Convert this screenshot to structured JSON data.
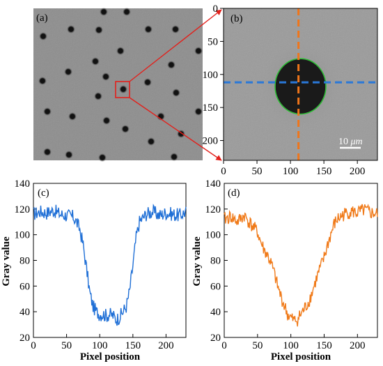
{
  "colors": {
    "blue": "#1f6fd6",
    "orange": "#f07a19",
    "dashed_blue": "#2a78d8",
    "dashed_orange": "#f0751a",
    "highlight_red": "#e3201b",
    "contour_green": "#22c22a"
  },
  "chart_data": [
    {
      "panel": "(a)",
      "type": "image",
      "description_tag": "(a)"
    },
    {
      "panel": "(b)",
      "type": "image",
      "xlim": [
        0,
        230
      ],
      "ylim": [
        0,
        230
      ],
      "y_inverted": true,
      "xticks": [
        0,
        50,
        100,
        150,
        200
      ],
      "yticks": [
        0,
        50,
        100,
        150,
        200
      ],
      "dashed_line_vertical_x": 112,
      "dashed_line_horizontal_y": 112,
      "circle_center": [
        115,
        118
      ],
      "circle_radius_x": 38,
      "circle_radius_y": 42,
      "scale_bar_label": "10 μm",
      "scale_bar_parts": {
        "value": "10 ",
        "unit": "μm"
      }
    },
    {
      "panel": "(c)",
      "type": "line",
      "color": "#1f6fd6",
      "xlabel": "Pixel position",
      "ylabel": "Gray value",
      "xlim": [
        0,
        230
      ],
      "ylim": [
        20,
        140
      ],
      "xticks": [
        0,
        50,
        100,
        150,
        200
      ],
      "yticks": [
        20,
        40,
        60,
        80,
        100,
        120,
        140
      ],
      "series": [
        {
          "x": [
            0,
            10,
            20,
            30,
            40,
            50,
            60,
            65,
            70,
            75,
            80,
            85,
            90,
            95,
            100,
            105,
            110,
            115,
            120,
            125,
            130,
            135,
            140,
            145,
            150,
            155,
            160,
            170,
            180,
            190,
            200,
            210,
            220,
            230
          ],
          "y": [
            116,
            118,
            117,
            119,
            116,
            115,
            114,
            110,
            104,
            92,
            74,
            55,
            44,
            40,
            38,
            38,
            37,
            38,
            37,
            34,
            36,
            40,
            44,
            56,
            76,
            98,
            110,
            116,
            118,
            115,
            117,
            116,
            115,
            118
          ]
        }
      ]
    },
    {
      "panel": "(d)",
      "type": "line",
      "color": "#f07a19",
      "xlabel": "Pixel position",
      "ylabel": "Gray value",
      "xlim": [
        0,
        230
      ],
      "ylim": [
        20,
        140
      ],
      "xticks": [
        0,
        50,
        100,
        150,
        200
      ],
      "yticks": [
        20,
        40,
        60,
        80,
        100,
        120,
        140
      ],
      "series": [
        {
          "x": [
            0,
            10,
            20,
            30,
            40,
            50,
            55,
            60,
            65,
            70,
            75,
            80,
            85,
            90,
            95,
            100,
            105,
            110,
            115,
            120,
            125,
            130,
            135,
            140,
            145,
            150,
            155,
            160,
            165,
            170,
            180,
            190,
            200,
            210,
            220,
            230
          ],
          "y": [
            112,
            114,
            110,
            115,
            108,
            102,
            94,
            88,
            84,
            78,
            70,
            60,
            52,
            45,
            38,
            35,
            33,
            34,
            38,
            42,
            46,
            52,
            60,
            68,
            75,
            82,
            92,
            100,
            108,
            112,
            116,
            118,
            117,
            119,
            117,
            116
          ]
        }
      ]
    }
  ]
}
